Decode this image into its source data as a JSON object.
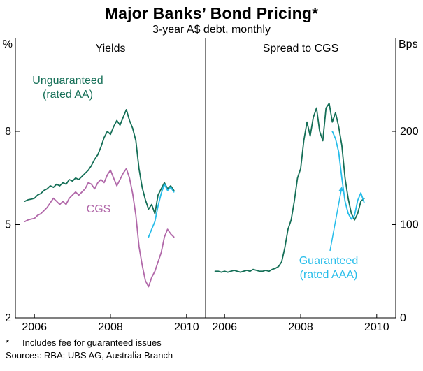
{
  "title": "Major Banks’ Bond Pricing*",
  "subtitle": "3-year A$ debt, monthly",
  "footnote": {
    "marker": "*",
    "text": "Includes fee for guaranteed issues"
  },
  "sources": "Sources: RBA; UBS AG, Australia Branch",
  "colors": {
    "unguaranteed": "#156f57",
    "cgs": "#b168a9",
    "guaranteed": "#27bdea"
  },
  "chart_data": {
    "type": "line",
    "title": "Major Banks’ Bond Pricing",
    "x_start": 2005.75,
    "x_step_years": 0.0833,
    "xlim": [
      2005.5,
      2010.5
    ],
    "x_ticks": [
      2006,
      2008,
      2010
    ],
    "grid": false,
    "panels": [
      {
        "title": "Yields",
        "unit": "%",
        "ylim": [
          2,
          11
        ],
        "yticks": [
          2,
          5,
          8
        ],
        "series": [
          {
            "id": "cgs-yield",
            "name": "CGS",
            "color": "#b168a9",
            "values": [
              5.1,
              5.15,
              5.18,
              5.2,
              5.3,
              5.35,
              5.45,
              5.55,
              5.7,
              5.85,
              5.75,
              5.65,
              5.75,
              5.65,
              5.85,
              5.95,
              6.05,
              5.95,
              6.05,
              6.15,
              6.35,
              6.3,
              6.15,
              6.35,
              6.45,
              6.35,
              6.6,
              6.75,
              6.5,
              6.25,
              6.45,
              6.65,
              6.8,
              6.5,
              6.0,
              5.3,
              4.3,
              3.7,
              3.2,
              3.0,
              3.3,
              3.5,
              3.8,
              4.1,
              4.6,
              4.85,
              4.7,
              4.6
            ]
          },
          {
            "id": "unguaranteed-yield",
            "name": "Unguaranteed (rated AA)",
            "color": "#156f57",
            "values": [
              5.75,
              5.8,
              5.82,
              5.85,
              5.95,
              6.0,
              6.1,
              6.15,
              6.25,
              6.2,
              6.3,
              6.25,
              6.35,
              6.3,
              6.45,
              6.4,
              6.5,
              6.45,
              6.55,
              6.65,
              6.75,
              6.9,
              7.1,
              7.25,
              7.5,
              7.8,
              8.0,
              7.9,
              8.15,
              8.35,
              8.2,
              8.45,
              8.7,
              8.35,
              8.1,
              7.7,
              6.8,
              6.2,
              5.8,
              5.5,
              5.65,
              5.35,
              5.95,
              6.15,
              6.35,
              6.15,
              6.25,
              6.1
            ]
          },
          {
            "id": "guaranteed-yield",
            "name": "Guaranteed (rated AAA)",
            "color": "#27bdea",
            "values": [
              null,
              null,
              null,
              null,
              null,
              null,
              null,
              null,
              null,
              null,
              null,
              null,
              null,
              null,
              null,
              null,
              null,
              null,
              null,
              null,
              null,
              null,
              null,
              null,
              null,
              null,
              null,
              null,
              null,
              null,
              null,
              null,
              null,
              null,
              null,
              null,
              null,
              null,
              null,
              4.6,
              4.85,
              5.1,
              5.6,
              6.0,
              6.3,
              6.1,
              6.2,
              6.05
            ]
          }
        ]
      },
      {
        "title": "Spread to CGS",
        "unit": "Bps",
        "ylim": [
          0,
          300
        ],
        "yticks": [
          0,
          100,
          200
        ],
        "series": [
          {
            "id": "unguaranteed-spread",
            "name": "Unguaranteed (rated AA)",
            "color": "#156f57",
            "values": [
              50,
              50,
              49,
              50,
              49,
              50,
              51,
              50,
              49,
              50,
              51,
              50,
              52,
              51,
              50,
              50,
              51,
              50,
              52,
              53,
              55,
              60,
              75,
              95,
              105,
              125,
              150,
              160,
              190,
              210,
              195,
              215,
              225,
              200,
              190,
              225,
              230,
              210,
              220,
              205,
              185,
              150,
              128,
              112,
              105,
              112,
              125,
              128
            ]
          },
          {
            "id": "guaranteed-spread",
            "name": "Guaranteed (rated AAA)",
            "color": "#27bdea",
            "values": [
              null,
              null,
              null,
              null,
              null,
              null,
              null,
              null,
              null,
              null,
              null,
              null,
              null,
              null,
              null,
              null,
              null,
              null,
              null,
              null,
              null,
              null,
              null,
              null,
              null,
              null,
              null,
              null,
              null,
              null,
              null,
              null,
              null,
              null,
              null,
              null,
              null,
              200,
              192,
              178,
              150,
              125,
              112,
              106,
              110,
              126,
              134,
              124
            ]
          }
        ]
      }
    ],
    "annotations": [
      {
        "id": "unguaranteed-label",
        "panel": 0,
        "lines": [
          "Unguaranteed",
          "(rated AA)"
        ],
        "color": "#156f57",
        "arrow": false
      },
      {
        "id": "cgs-label",
        "panel": 0,
        "lines": [
          "CGS"
        ],
        "color": "#b168a9",
        "arrow": false
      },
      {
        "id": "guaranteed-label",
        "panel": 1,
        "lines": [
          "Guaranteed",
          "(rated AAA)"
        ],
        "color": "#27bdea",
        "arrow": true
      }
    ]
  }
}
